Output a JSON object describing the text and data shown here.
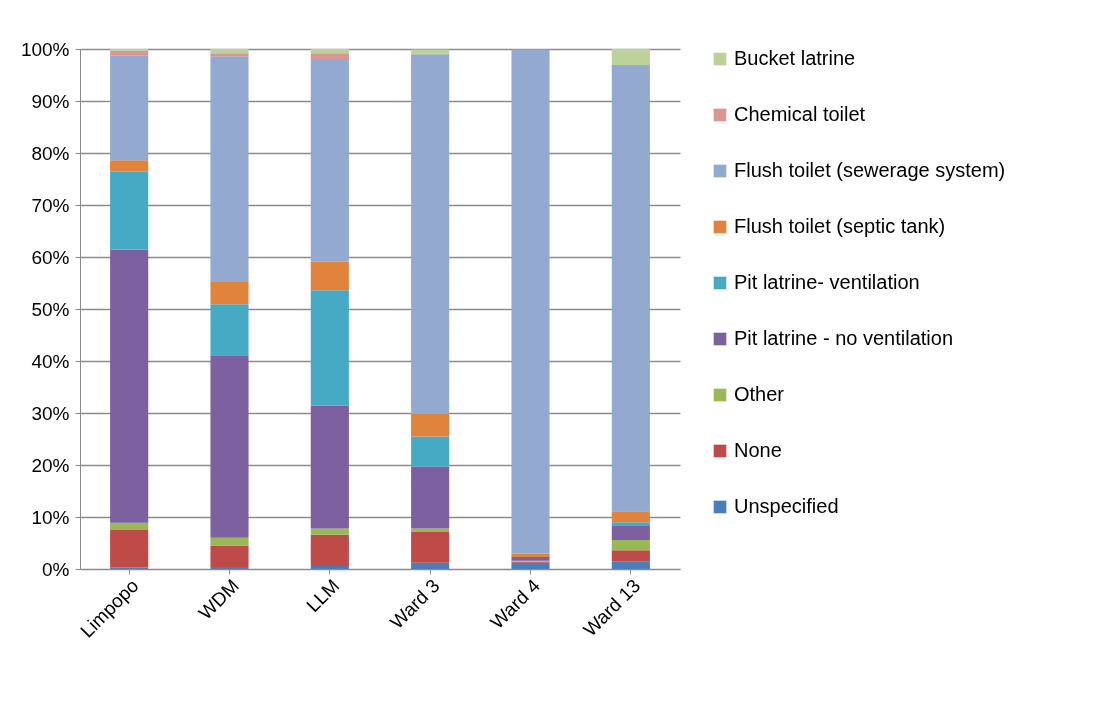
{
  "chart_data": {
    "type": "bar",
    "stacked": true,
    "categories": [
      "Limpopo",
      "WDM",
      "LLM",
      "Ward 3",
      "Ward 4",
      "Ward 13"
    ],
    "series": [
      {
        "name": "Unspecified",
        "color": "#4a7ebb",
        "values": [
          0.3,
          0.4,
          0.6,
          1.2,
          1.2,
          1.5
        ]
      },
      {
        "name": "None",
        "color": "#be4b48",
        "values": [
          7.2,
          4.1,
          6,
          5.9,
          0.2,
          2.1
        ]
      },
      {
        "name": "Other",
        "color": "#98b954",
        "values": [
          1.4,
          1.5,
          1.2,
          0.7,
          0.2,
          2
        ]
      },
      {
        "name": "Pit latrine - no ventilation",
        "color": "#7d60a0",
        "values": [
          52.5,
          35.1,
          23.6,
          11.9,
          0.7,
          2.8
        ]
      },
      {
        "name": "Pit latrine- ventilation",
        "color": "#46aac5",
        "values": [
          15,
          9.8,
          22.2,
          5.8,
          null,
          0.6
        ]
      },
      {
        "name": "Flush toilet (septic tank)",
        "color": "#e0833c",
        "values": [
          2.2,
          4.3,
          5.5,
          4.3,
          0.7,
          2.1
        ]
      },
      {
        "name": "Flush toilet (sewerage system)",
        "color": "#94a9d0",
        "values": [
          20.2,
          43.4,
          39,
          69.2,
          96.9,
          85.8
        ]
      },
      {
        "name": "Chemical toilet",
        "color": "#d99694",
        "values": [
          0.8,
          0.6,
          1.1,
          null,
          0,
          0
        ]
      },
      {
        "name": "Bucket latrine",
        "color": "#bdd19a",
        "values": [
          0.4,
          0.8,
          0.8,
          0.9,
          0,
          3.1
        ]
      }
    ],
    "ylim": [
      0,
      100
    ],
    "yticks": [
      {
        "value": 0,
        "label": "0%"
      },
      {
        "value": 10,
        "label": "10%"
      },
      {
        "value": 20,
        "label": "20%"
      },
      {
        "value": 30,
        "label": "30%"
      },
      {
        "value": 40,
        "label": "40%"
      },
      {
        "value": 50,
        "label": "50%"
      },
      {
        "value": 60,
        "label": "60%"
      },
      {
        "value": 70,
        "label": "70%"
      },
      {
        "value": 80,
        "label": "80%"
      },
      {
        "value": 90,
        "label": "90%"
      },
      {
        "value": 100,
        "label": "100%"
      }
    ],
    "grid": "y",
    "legend": "right"
  }
}
